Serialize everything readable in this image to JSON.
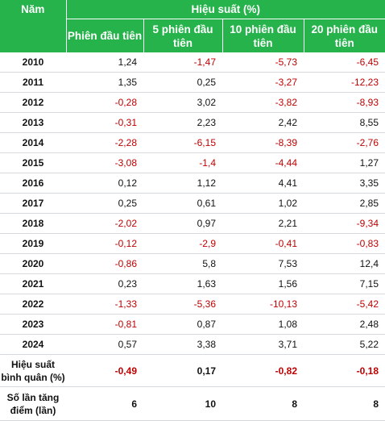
{
  "header": {
    "col_year": "Năm",
    "group": "Hiệu suất (%)",
    "sessions": [
      "Phiên đầu tiên",
      "5 phiên đầu tiên",
      "10 phiên đầu tiên",
      "20 phiên đầu tiên"
    ]
  },
  "rows": [
    {
      "year": "2010",
      "values": [
        "1,24",
        "-1,47",
        "-5,73",
        "-6,45"
      ]
    },
    {
      "year": "2011",
      "values": [
        "1,35",
        "0,25",
        "-3,27",
        "-12,23"
      ]
    },
    {
      "year": "2012",
      "values": [
        "-0,28",
        "3,02",
        "-3,82",
        "-8,93"
      ]
    },
    {
      "year": "2013",
      "values": [
        "-0,31",
        "2,23",
        "2,42",
        "8,55"
      ]
    },
    {
      "year": "2014",
      "values": [
        "-2,28",
        "-6,15",
        "-8,39",
        "-2,76"
      ]
    },
    {
      "year": "2015",
      "values": [
        "-3,08",
        "-1,4",
        "-4,44",
        "1,27"
      ]
    },
    {
      "year": "2016",
      "values": [
        "0,12",
        "1,12",
        "4,41",
        "3,35"
      ]
    },
    {
      "year": "2017",
      "values": [
        "0,25",
        "0,61",
        "1,02",
        "2,85"
      ]
    },
    {
      "year": "2018",
      "values": [
        "-2,02",
        "0,97",
        "2,21",
        "-9,34"
      ]
    },
    {
      "year": "2019",
      "values": [
        "-0,12",
        "-2,9",
        "-0,41",
        "-0,83"
      ]
    },
    {
      "year": "2020",
      "values": [
        "-0,86",
        "5,8",
        "7,53",
        "12,4"
      ]
    },
    {
      "year": "2021",
      "values": [
        "0,23",
        "1,63",
        "1,56",
        "7,15"
      ]
    },
    {
      "year": "2022",
      "values": [
        "-1,33",
        "-5,36",
        "-10,13",
        "-5,42"
      ]
    },
    {
      "year": "2023",
      "values": [
        "-0,81",
        "0,87",
        "1,08",
        "2,48"
      ]
    },
    {
      "year": "2024",
      "values": [
        "0,57",
        "3,38",
        "3,71",
        "5,22"
      ]
    }
  ],
  "summary": {
    "avg_label": "Hiệu suất bình quân (%)",
    "avg_values": [
      "-0,49",
      "0,17",
      "-0,82",
      "-0,18"
    ],
    "count_label": "Số lần tăng điểm (lần)",
    "count_values": [
      "6",
      "10",
      "8",
      "8"
    ]
  },
  "colors": {
    "header_bg": "#27b34b",
    "negative": "#c00000",
    "text": "#111111"
  }
}
